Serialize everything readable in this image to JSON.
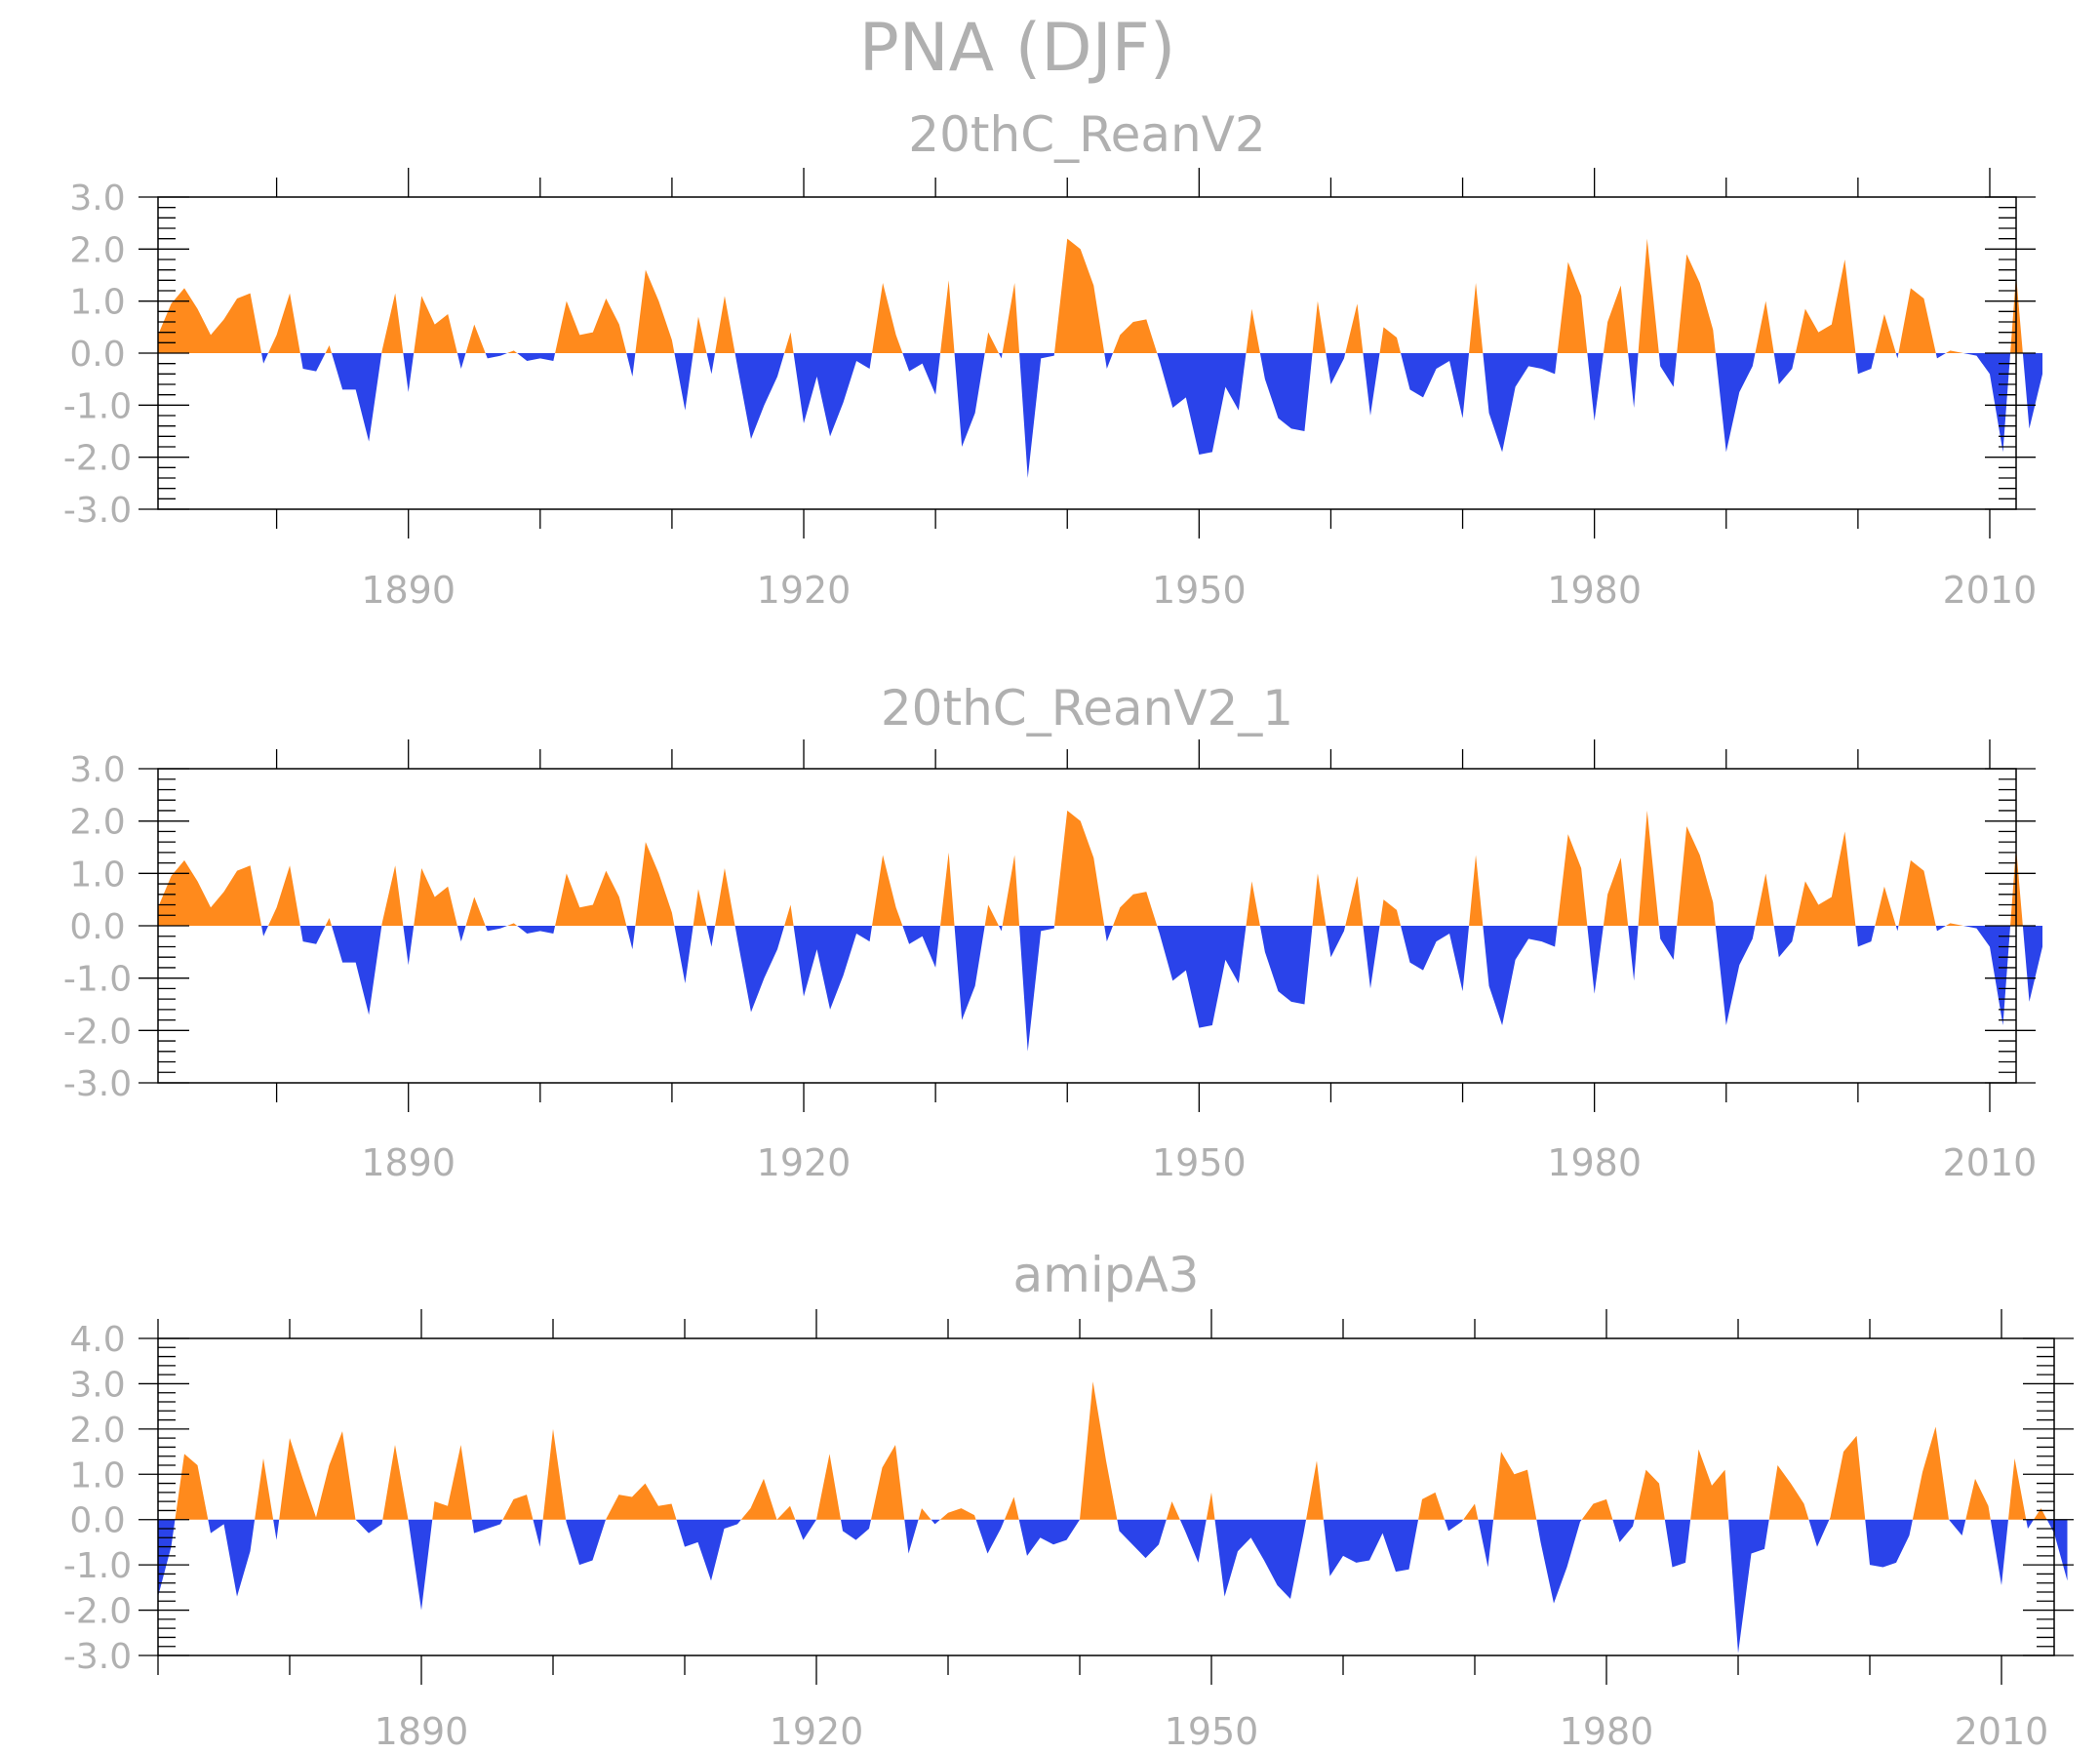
{
  "title": "PNA (DJF)",
  "colors": {
    "positive": "#ff8a1c",
    "negative": "#2a43ea",
    "frame": "#000000",
    "text": "#b0b0b0"
  },
  "chart_data": [
    {
      "type": "area",
      "title": "20thC_ReanV2",
      "xlim": [
        1871,
        2012
      ],
      "x_ticks": [
        1890,
        1920,
        1950,
        1980,
        2010
      ],
      "ylim": [
        -3,
        3
      ],
      "y_ticks": [
        "3.0",
        "2.0",
        "1.0",
        "0.0",
        "-1.0",
        "-2.0",
        "-3.0"
      ],
      "x_start": 1871,
      "values": [
        0.35,
        0.95,
        1.25,
        0.85,
        0.35,
        0.65,
        1.05,
        1.15,
        -0.2,
        0.35,
        1.15,
        -0.3,
        -0.35,
        0.15,
        -0.7,
        -0.7,
        -1.7,
        0.05,
        1.15,
        -0.75,
        1.1,
        0.55,
        0.75,
        -0.3,
        0.55,
        -0.1,
        -0.05,
        0.05,
        -0.15,
        -0.1,
        -0.15,
        1.0,
        0.35,
        0.4,
        1.05,
        0.55,
        -0.45,
        1.6,
        1.0,
        0.25,
        -1.1,
        0.7,
        -0.4,
        1.1,
        -0.3,
        -1.65,
        -1.0,
        -0.45,
        0.4,
        -1.35,
        -0.45,
        -1.6,
        -0.95,
        -0.15,
        -0.3,
        1.35,
        0.35,
        -0.35,
        -0.2,
        -0.8,
        1.4,
        -1.8,
        -1.15,
        0.4,
        -0.1,
        1.35,
        -2.4,
        -0.1,
        -0.05,
        2.2,
        2.0,
        1.3,
        -0.3,
        0.35,
        0.6,
        0.65,
        -0.15,
        -1.05,
        -0.85,
        -1.95,
        -1.9,
        -0.65,
        -1.1,
        0.85,
        -0.5,
        -1.25,
        -1.45,
        -1.5,
        1.0,
        -0.6,
        -0.1,
        0.95,
        -1.2,
        0.5,
        0.3,
        -0.7,
        -0.85,
        -0.3,
        -0.15,
        -1.25,
        1.35,
        -1.15,
        -1.9,
        -0.65,
        -0.25,
        -0.3,
        -0.4,
        1.75,
        1.1,
        -1.3,
        0.6,
        1.3,
        -1.05,
        2.2,
        -0.25,
        -0.65,
        1.9,
        1.35,
        0.45,
        -1.9,
        -0.75,
        -0.25,
        1.0,
        -0.6,
        -0.3,
        0.85,
        0.4,
        0.55,
        1.8,
        -0.4,
        -0.3,
        0.75,
        -0.1,
        1.25,
        1.05,
        -0.1,
        0.05,
        0.0,
        -0.05,
        -0.4,
        -1.9,
        1.5,
        -1.45,
        -0.4
      ]
    },
    {
      "type": "area",
      "title": "20thC_ReanV2_1",
      "xlim": [
        1871,
        2012
      ],
      "x_ticks": [
        1890,
        1920,
        1950,
        1980,
        2010
      ],
      "ylim": [
        -3,
        3
      ],
      "y_ticks": [
        "3.0",
        "2.0",
        "1.0",
        "0.0",
        "-1.0",
        "-2.0",
        "-3.0"
      ],
      "x_start": 1871,
      "values": [
        0.35,
        0.95,
        1.25,
        0.85,
        0.35,
        0.65,
        1.05,
        1.15,
        -0.2,
        0.35,
        1.15,
        -0.3,
        -0.35,
        0.15,
        -0.7,
        -0.7,
        -1.7,
        0.05,
        1.15,
        -0.75,
        1.1,
        0.55,
        0.75,
        -0.3,
        0.55,
        -0.1,
        -0.05,
        0.05,
        -0.15,
        -0.1,
        -0.15,
        1.0,
        0.35,
        0.4,
        1.05,
        0.55,
        -0.45,
        1.6,
        1.0,
        0.25,
        -1.1,
        0.7,
        -0.4,
        1.1,
        -0.3,
        -1.65,
        -1.0,
        -0.45,
        0.4,
        -1.35,
        -0.45,
        -1.6,
        -0.95,
        -0.15,
        -0.3,
        1.35,
        0.35,
        -0.35,
        -0.2,
        -0.8,
        1.4,
        -1.8,
        -1.15,
        0.4,
        -0.1,
        1.35,
        -2.4,
        -0.1,
        -0.05,
        2.2,
        2.0,
        1.3,
        -0.3,
        0.35,
        0.6,
        0.65,
        -0.15,
        -1.05,
        -0.85,
        -1.95,
        -1.9,
        -0.65,
        -1.1,
        0.85,
        -0.5,
        -1.25,
        -1.45,
        -1.5,
        1.0,
        -0.6,
        -0.1,
        0.95,
        -1.2,
        0.5,
        0.3,
        -0.7,
        -0.85,
        -0.3,
        -0.15,
        -1.25,
        1.35,
        -1.15,
        -1.9,
        -0.65,
        -0.25,
        -0.3,
        -0.4,
        1.75,
        1.1,
        -1.3,
        0.6,
        1.3,
        -1.05,
        2.2,
        -0.25,
        -0.65,
        1.9,
        1.35,
        0.45,
        -1.9,
        -0.75,
        -0.25,
        1.0,
        -0.6,
        -0.3,
        0.85,
        0.4,
        0.55,
        1.8,
        -0.4,
        -0.3,
        0.75,
        -0.1,
        1.25,
        1.05,
        -0.1,
        0.05,
        0.0,
        -0.05,
        -0.4,
        -1.9,
        1.5,
        -1.45,
        -0.4
      ]
    },
    {
      "type": "area",
      "title": "amipA3",
      "xlim": [
        1870,
        2014
      ],
      "x_ticks": [
        1890,
        1920,
        1950,
        1980,
        2010
      ],
      "ylim": [
        -3,
        4
      ],
      "y_ticks": [
        "4.0",
        "3.0",
        "2.0",
        "1.0",
        "0.0",
        "-1.0",
        "-2.0",
        "-3.0"
      ],
      "x_start": 1870,
      "values": [
        -1.7,
        -0.6,
        1.45,
        1.2,
        -0.3,
        -0.1,
        -1.7,
        -0.7,
        1.35,
        -0.45,
        1.8,
        0.9,
        0.05,
        1.2,
        1.95,
        0.0,
        -0.3,
        -0.1,
        1.65,
        0.0,
        -2.0,
        0.4,
        0.3,
        1.65,
        -0.3,
        -0.2,
        -0.1,
        0.45,
        0.55,
        -0.6,
        2.0,
        -0.05,
        -1.0,
        -0.9,
        0.0,
        0.55,
        0.5,
        0.8,
        0.3,
        0.35,
        -0.6,
        -0.5,
        -1.35,
        -0.2,
        -0.1,
        0.25,
        0.9,
        0.0,
        0.3,
        -0.45,
        0.0,
        1.45,
        -0.25,
        -0.45,
        -0.2,
        1.15,
        1.65,
        -0.75,
        0.25,
        -0.1,
        0.15,
        0.25,
        0.1,
        -0.75,
        -0.2,
        0.5,
        -0.8,
        -0.4,
        -0.55,
        -0.45,
        0.0,
        3.05,
        1.3,
        -0.25,
        -0.55,
        -0.85,
        -0.55,
        0.4,
        -0.25,
        -0.95,
        0.6,
        -1.7,
        -0.7,
        -0.4,
        -0.9,
        -1.45,
        -1.75,
        -0.3,
        1.3,
        -1.25,
        -0.8,
        -0.95,
        -0.9,
        -0.3,
        -1.15,
        -1.1,
        0.45,
        0.6,
        -0.25,
        -0.05,
        0.35,
        -1.05,
        1.5,
        1.0,
        1.1,
        -0.5,
        -1.85,
        -1.05,
        -0.05,
        0.35,
        0.45,
        -0.5,
        -0.15,
        1.1,
        0.8,
        -1.05,
        -0.95,
        1.55,
        0.75,
        1.1,
        -2.95,
        -0.75,
        -0.65,
        1.2,
        0.8,
        0.35,
        -0.6,
        0.05,
        1.5,
        1.85,
        -1.0,
        -1.05,
        -0.95,
        -0.35,
        1.05,
        2.05,
        0.0,
        -0.35,
        0.9,
        0.3,
        -1.45,
        1.35,
        -0.2,
        0.25,
        -0.3,
        -1.35
      ]
    }
  ]
}
